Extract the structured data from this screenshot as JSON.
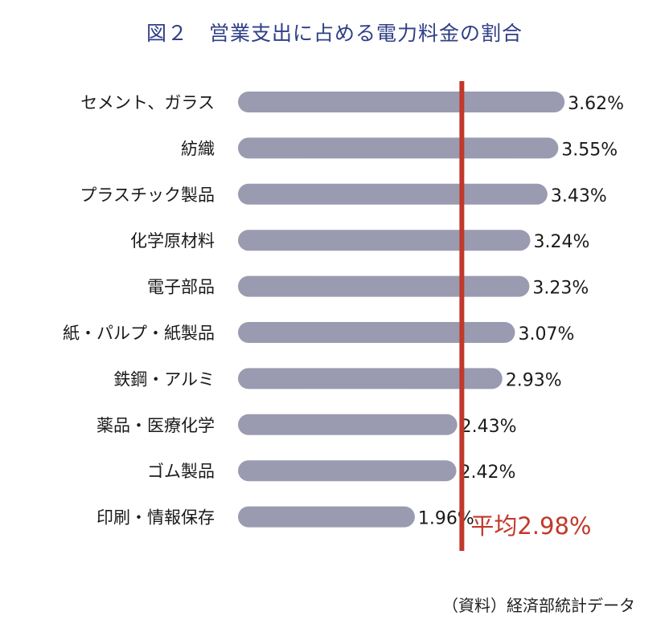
{
  "chart_data": {
    "type": "bar",
    "orientation": "horizontal",
    "title": "図２　営業支出に占める電力料金の割合",
    "categories": [
      "セメント、ガラス",
      "紡織",
      "プラスチック製品",
      "化学原材料",
      "電子部品",
      "紙・パルプ・紙製品",
      "鉄鋼・アルミ",
      "薬品・医療化学",
      "ゴム製品",
      "印刷・情報保存"
    ],
    "values": [
      3.62,
      3.55,
      3.43,
      3.24,
      3.23,
      3.07,
      2.93,
      2.43,
      2.42,
      1.96
    ],
    "value_labels": [
      "3.62%",
      "3.55%",
      "3.43%",
      "3.24%",
      "3.23%",
      "3.07%",
      "2.93%",
      "2.43%",
      "2.42%",
      "1.96%"
    ],
    "reference_line": {
      "value": 2.98,
      "label": "平均2.98%",
      "color": "#c0392b"
    },
    "bar_color": "#9a9bb0",
    "title_color": "#2f3f86",
    "source": "（資料）経済部統計データ"
  }
}
